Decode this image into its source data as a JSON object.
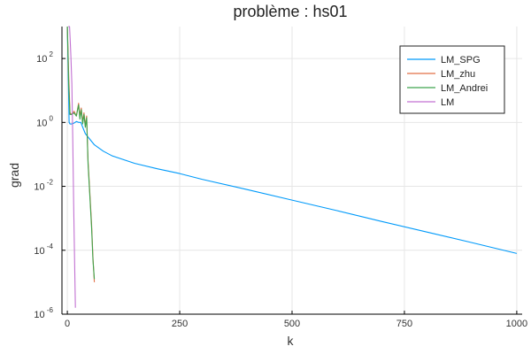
{
  "chart_data": {
    "type": "line",
    "title": "problème : hs01",
    "xlabel": "k",
    "ylabel": "grad",
    "xlim": [
      -12,
      1012
    ],
    "ylim_log10": [
      -6,
      3
    ],
    "y_scale": "log10",
    "grid": true,
    "legend_position": "top-right",
    "x_ticks": [
      {
        "value": 0,
        "label": "0"
      },
      {
        "value": 250,
        "label": "250"
      },
      {
        "value": 500,
        "label": "500"
      },
      {
        "value": 750,
        "label": "750"
      },
      {
        "value": 1000,
        "label": "1000"
      }
    ],
    "y_ticks": [
      {
        "value": -6,
        "base": "10",
        "exp": "-6"
      },
      {
        "value": -4,
        "base": "10",
        "exp": "-4"
      },
      {
        "value": -2,
        "base": "10",
        "exp": "-2"
      },
      {
        "value": 0,
        "base": "10",
        "exp": "0"
      },
      {
        "value": 2,
        "base": "10",
        "exp": "2"
      }
    ],
    "series": [
      {
        "name": "LM_SPG",
        "color": "#009AFA",
        "points": [
          [
            0,
            3.0
          ],
          [
            2,
            1.5
          ],
          [
            4,
            0.0
          ],
          [
            6,
            -0.05
          ],
          [
            10,
            -0.05
          ],
          [
            15,
            -0.02
          ],
          [
            20,
            0.03
          ],
          [
            25,
            0.0
          ],
          [
            30,
            0.0
          ],
          [
            40,
            -0.35
          ],
          [
            60,
            -0.7
          ],
          [
            80,
            -0.9
          ],
          [
            100,
            -1.05
          ],
          [
            150,
            -1.28
          ],
          [
            200,
            -1.45
          ],
          [
            250,
            -1.6
          ],
          [
            300,
            -1.78
          ],
          [
            400,
            -2.1
          ],
          [
            500,
            -2.43
          ],
          [
            600,
            -2.76
          ],
          [
            700,
            -3.1
          ],
          [
            800,
            -3.43
          ],
          [
            900,
            -3.76
          ],
          [
            1000,
            -4.1
          ]
        ]
      },
      {
        "name": "LM_zhu",
        "color": "#E26F46",
        "points": [
          [
            0,
            3.0
          ],
          [
            3,
            1.5
          ],
          [
            6,
            0.3
          ],
          [
            10,
            0.25
          ],
          [
            15,
            0.35
          ],
          [
            20,
            0.2
          ],
          [
            25,
            0.6
          ],
          [
            28,
            0.2
          ],
          [
            31,
            0.45
          ],
          [
            34,
            0.0
          ],
          [
            37,
            0.3
          ],
          [
            40,
            -0.1
          ],
          [
            43,
            0.2
          ],
          [
            46,
            -1.2
          ],
          [
            50,
            -2.2
          ],
          [
            54,
            -3.2
          ],
          [
            57,
            -4.2
          ],
          [
            60,
            -5.0
          ]
        ]
      },
      {
        "name": "LM_Andrei",
        "color": "#3DA44D",
        "points": [
          [
            0,
            3.0
          ],
          [
            3,
            1.2
          ],
          [
            6,
            0.25
          ],
          [
            10,
            0.25
          ],
          [
            15,
            0.3
          ],
          [
            20,
            0.2
          ],
          [
            25,
            0.55
          ],
          [
            28,
            0.1
          ],
          [
            31,
            0.4
          ],
          [
            34,
            -0.05
          ],
          [
            37,
            0.25
          ],
          [
            40,
            -0.15
          ],
          [
            43,
            0.15
          ],
          [
            46,
            -1.3
          ],
          [
            50,
            -2.3
          ],
          [
            54,
            -3.3
          ],
          [
            57,
            -4.3
          ],
          [
            60,
            -4.9
          ]
        ]
      },
      {
        "name": "LM",
        "color": "#C271D2",
        "points": [
          [
            2,
            3.0
          ],
          [
            5,
            3.0
          ],
          [
            7,
            2.4
          ],
          [
            8,
            2.0
          ],
          [
            10,
            1.2
          ],
          [
            12,
            -0.5
          ],
          [
            14,
            -2.5
          ],
          [
            16,
            -4.2
          ],
          [
            18,
            -5.8
          ]
        ]
      }
    ]
  }
}
